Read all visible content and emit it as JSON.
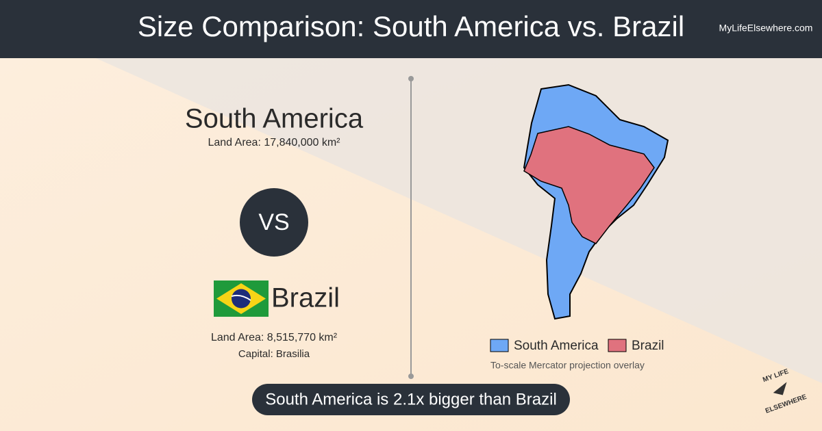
{
  "header": {
    "title": "Size Comparison: South America vs. Brazil",
    "site": "MyLifeElsewhere.com"
  },
  "left": {
    "region": {
      "name": "South America",
      "land_area": "Land Area: 17,840,000 km²"
    },
    "vs": "VS",
    "country": {
      "name": "Brazil",
      "land_area": "Land Area: 8,515,770 km²",
      "capital": "Capital: Brasilia"
    }
  },
  "map": {
    "legend": [
      "South America",
      "Brazil"
    ],
    "note": "To-scale Mercator projection overlay"
  },
  "banner": "South America is 2.1x bigger than Brazil",
  "logo": {
    "line1": "MY LIFE",
    "line2": "ELSEWHERE"
  }
}
